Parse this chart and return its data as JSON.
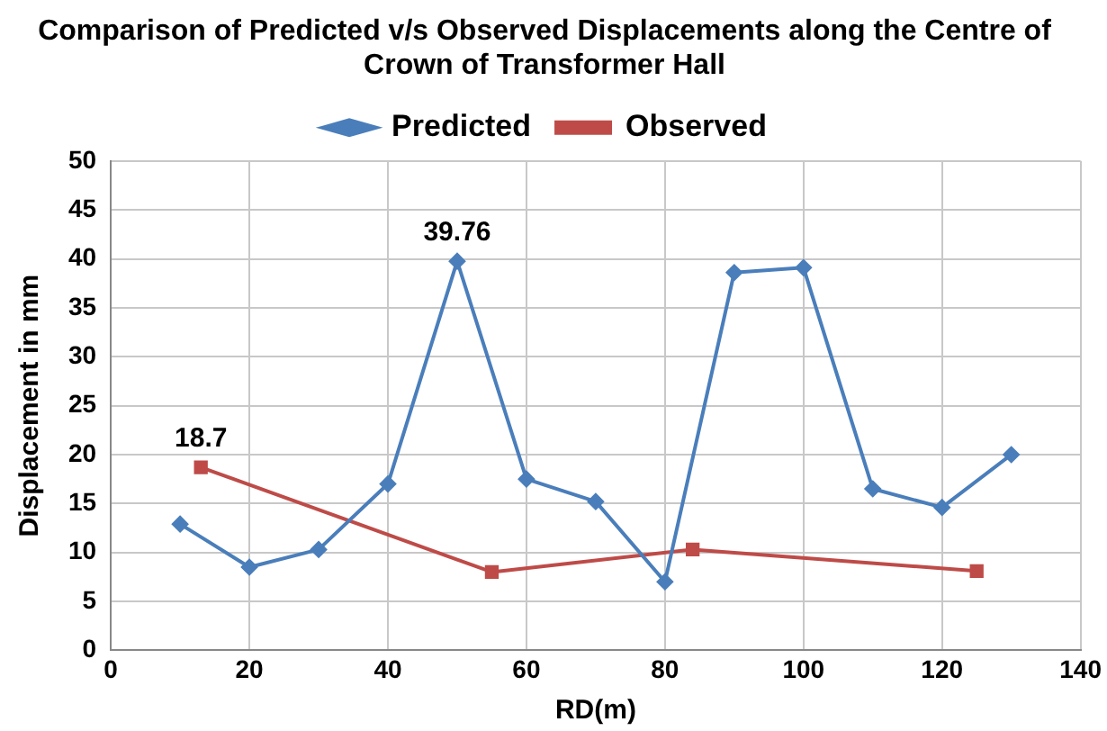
{
  "chart_data": {
    "type": "line",
    "title": "Comparison of Predicted v/s Observed Displacements along the Centre of Crown of Transformer Hall",
    "xlabel": "RD(m)",
    "ylabel": "Displacement in mm",
    "series": [
      {
        "name": "Predicted",
        "color": "#4a7ebb",
        "marker": "diamond",
        "x": [
          10,
          20,
          30,
          40,
          50,
          60,
          70,
          80,
          90,
          100,
          110,
          120,
          130
        ],
        "values": [
          12.9,
          8.5,
          10.3,
          17,
          39.76,
          17.5,
          15.2,
          7,
          38.6,
          39.1,
          16.5,
          14.6,
          20
        ],
        "value_labels": [
          null,
          null,
          null,
          null,
          "39.76",
          null,
          null,
          null,
          null,
          null,
          null,
          null,
          null
        ]
      },
      {
        "name": "Observed",
        "color": "#be4b48",
        "marker": "square",
        "x": [
          13,
          55,
          84,
          125
        ],
        "values": [
          18.7,
          8,
          10.3,
          8.1
        ],
        "value_labels": [
          "18.7",
          null,
          null,
          null
        ]
      }
    ],
    "xlim": [
      0,
      140
    ],
    "xticks": [
      0,
      20,
      40,
      60,
      80,
      100,
      120,
      140
    ],
    "ylim": [
      0,
      50
    ],
    "yticks": [
      0,
      5,
      10,
      15,
      20,
      25,
      30,
      35,
      40,
      45,
      50
    ],
    "grid": true,
    "legend": "top"
  }
}
